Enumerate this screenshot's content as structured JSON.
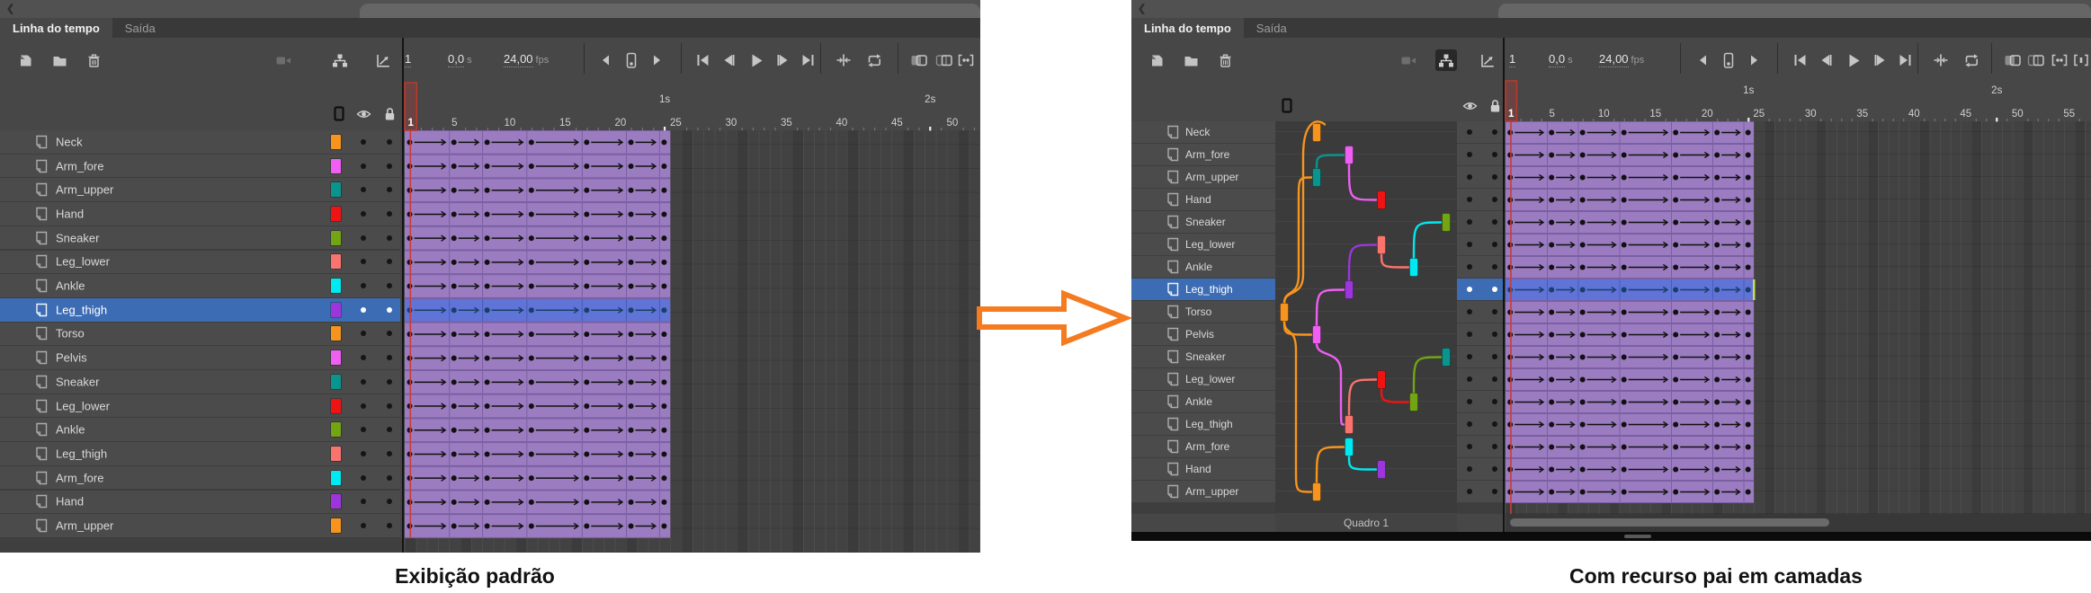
{
  "colors": {
    "orange": "#F7941E",
    "magenta": "#EE5FF2",
    "teal": "#0A948E",
    "red": "#EE1414",
    "olive": "#72A414",
    "salmon": "#FA746E",
    "cyan": "#00E8F0",
    "purple": "#9C36DC",
    "selection_blue": "#3C6CB4",
    "tween_purple": "#9B7CC1",
    "tween_purple_dark": "#7A5FA2",
    "tween_selected": "#6073D6",
    "tween_selected_dark": "#4A5CB8",
    "keyframe_black": "#111111",
    "keyframe_selected": "#16406B",
    "playhead_red": "#CE3A34",
    "arrow_orange": "#F47B20",
    "selected_end_marker": "#C7DE4F"
  },
  "left_panel": {
    "tabs": [
      {
        "label": "Linha do tempo"
      },
      {
        "label": "Saída"
      }
    ],
    "toolbar": {
      "current_frame": "1",
      "elapsed_time": "0,0",
      "elapsed_time_unit": "s",
      "frame_rate": "24,00",
      "frame_rate_unit": "fps"
    },
    "layers": [
      {
        "name": "Neck",
        "color": "orange"
      },
      {
        "name": "Arm_fore",
        "color": "magenta"
      },
      {
        "name": "Arm_upper",
        "color": "teal"
      },
      {
        "name": "Hand",
        "color": "red"
      },
      {
        "name": "Sneaker",
        "color": "olive"
      },
      {
        "name": "Leg_lower",
        "color": "salmon"
      },
      {
        "name": "Ankle",
        "color": "cyan"
      },
      {
        "name": "Leg_thigh",
        "color": "purple"
      },
      {
        "name": "Torso",
        "color": "orange"
      },
      {
        "name": "Pelvis",
        "color": "magenta"
      },
      {
        "name": "Sneaker",
        "color": "teal"
      },
      {
        "name": "Leg_lower",
        "color": "red"
      },
      {
        "name": "Ankle",
        "color": "olive"
      },
      {
        "name": "Leg_thigh",
        "color": "salmon"
      },
      {
        "name": "Arm_fore",
        "color": "cyan"
      },
      {
        "name": "Hand",
        "color": "purple"
      },
      {
        "name": "Arm_upper",
        "color": "orange"
      }
    ],
    "selected_index": 7,
    "ruler": {
      "frame_labels": [
        1,
        5,
        10,
        15,
        20,
        25,
        30,
        35,
        40,
        45,
        50
      ],
      "second_labels": [
        {
          "label": "1s",
          "frame": 24
        },
        {
          "label": "2s",
          "frame": 48
        }
      ]
    },
    "tween": {
      "keyframes": [
        1,
        5,
        8,
        12,
        17,
        21,
        24
      ],
      "span_end": 24
    },
    "caption": "Exibição padrão"
  },
  "right_panel": {
    "tabs": [
      {
        "label": "Linha do tempo"
      },
      {
        "label": "Saída"
      }
    ],
    "toolbar": {
      "current_frame": "1",
      "elapsed_time": "0,0",
      "elapsed_time_unit": "s",
      "frame_rate": "24,00",
      "frame_rate_unit": "fps"
    },
    "layers": [
      {
        "name": "Neck",
        "color": "orange",
        "depth": 1,
        "parent": 8
      },
      {
        "name": "Arm_fore",
        "color": "magenta",
        "depth": 2,
        "parent": 2
      },
      {
        "name": "Arm_upper",
        "color": "teal",
        "depth": 1,
        "parent": 8
      },
      {
        "name": "Hand",
        "color": "red",
        "depth": 3,
        "parent": 1
      },
      {
        "name": "Sneaker",
        "color": "olive",
        "depth": 5,
        "parent": 6
      },
      {
        "name": "Leg_lower",
        "color": "salmon",
        "depth": 3,
        "parent": 7
      },
      {
        "name": "Ankle",
        "color": "cyan",
        "depth": 4,
        "parent": 5
      },
      {
        "name": "Leg_thigh",
        "color": "purple",
        "depth": 2,
        "parent": 9
      },
      {
        "name": "Torso",
        "color": "orange",
        "depth": 0,
        "parent": null
      },
      {
        "name": "Pelvis",
        "color": "magenta",
        "depth": 1,
        "parent": 8
      },
      {
        "name": "Sneaker",
        "color": "teal",
        "depth": 5,
        "parent": 12
      },
      {
        "name": "Leg_lower",
        "color": "red",
        "depth": 3,
        "parent": 13
      },
      {
        "name": "Ankle",
        "color": "olive",
        "depth": 4,
        "parent": 11
      },
      {
        "name": "Leg_thigh",
        "color": "salmon",
        "depth": 2,
        "parent": 9
      },
      {
        "name": "Arm_fore",
        "color": "cyan",
        "depth": 2,
        "parent": 16
      },
      {
        "name": "Hand",
        "color": "purple",
        "depth": 3,
        "parent": 14
      },
      {
        "name": "Arm_upper",
        "color": "orange",
        "depth": 1,
        "parent": 8
      }
    ],
    "selected_index": 7,
    "ruler": {
      "frame_labels": [
        1,
        5,
        10,
        15,
        20,
        25,
        30,
        35,
        40,
        45,
        50,
        55
      ],
      "second_labels": [
        {
          "label": "1s",
          "frame": 24
        },
        {
          "label": "2s",
          "frame": 48
        }
      ]
    },
    "tween": {
      "keyframes": [
        1,
        5,
        8,
        12,
        17,
        21,
        24
      ],
      "span_end": 24
    },
    "footer_label": "Quadro 1",
    "caption": "Com recurso pai em camadas"
  }
}
